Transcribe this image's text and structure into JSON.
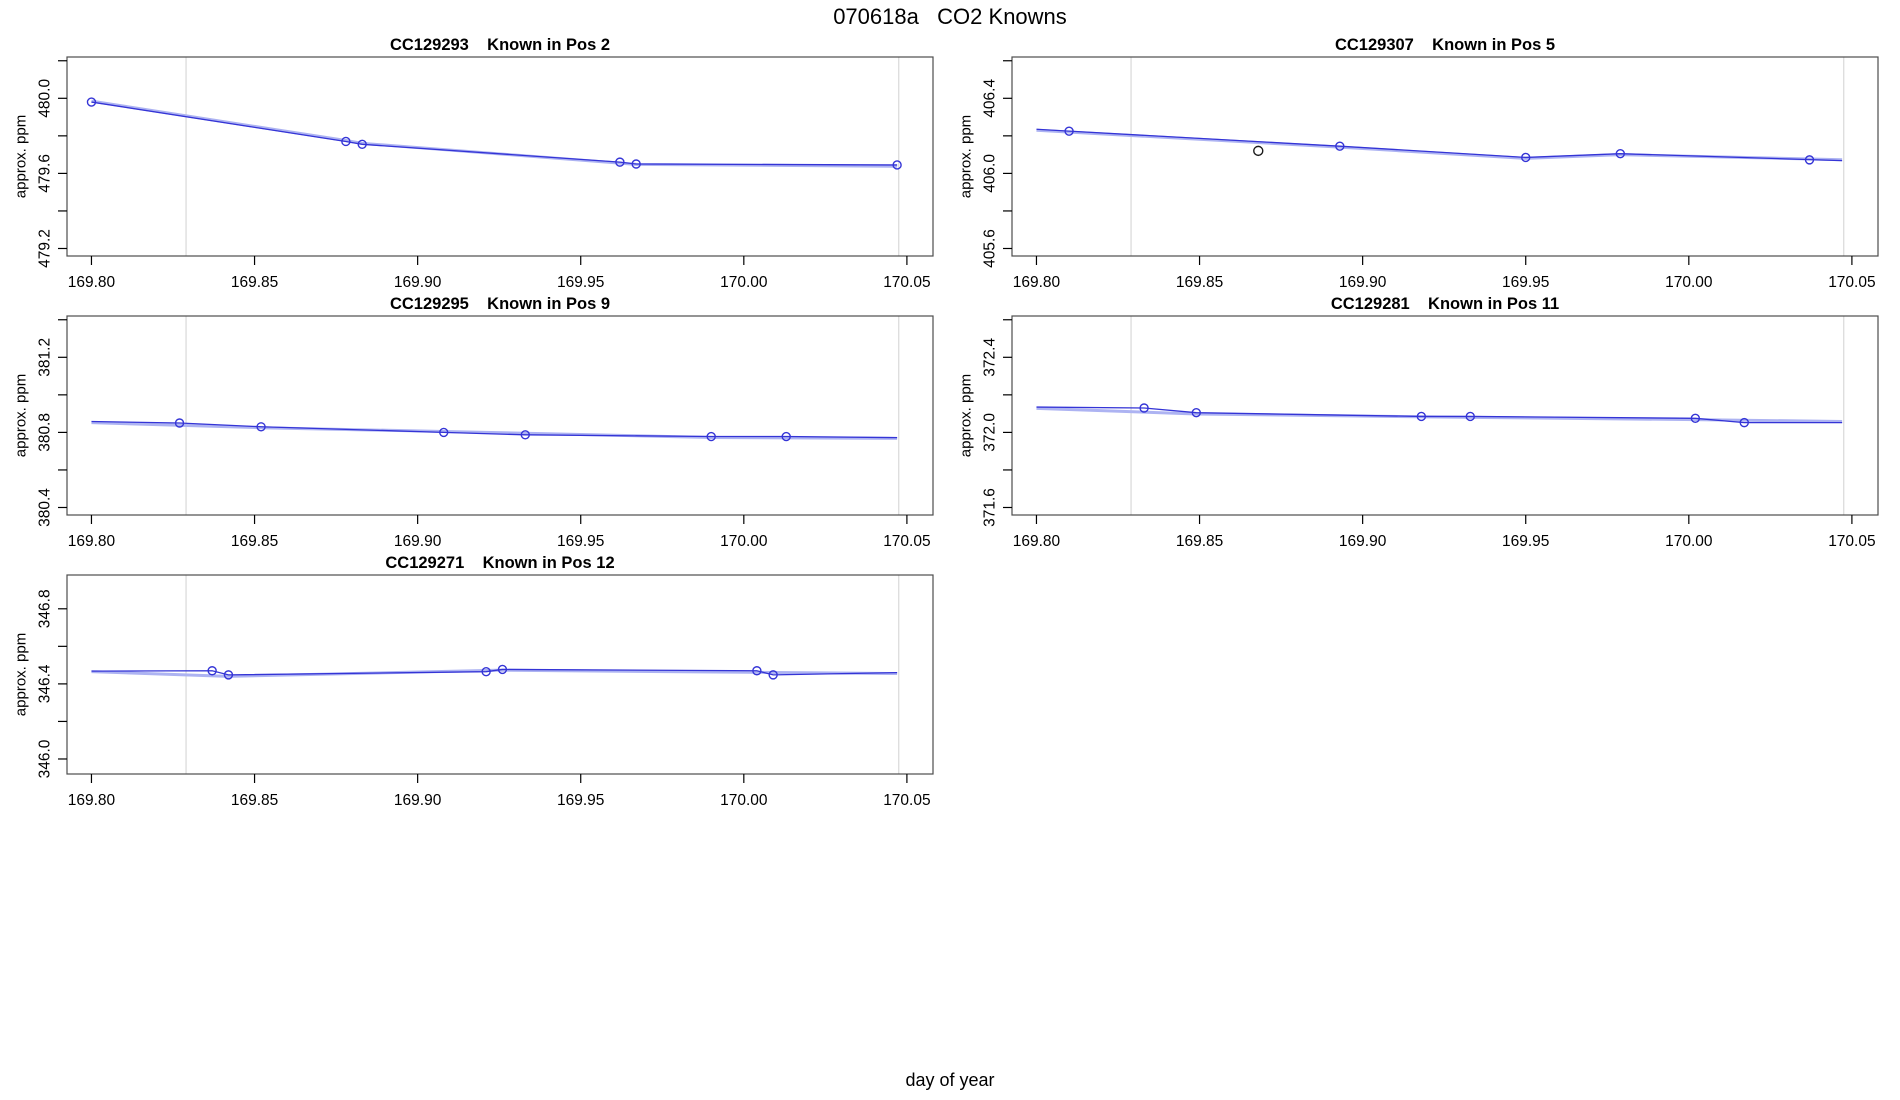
{
  "figure": {
    "title": "070618a   CO2 Knowns",
    "xlabel": "day of year",
    "background": "#ffffff"
  },
  "colors": {
    "line": "#3434d6",
    "light_line": "#adb3f2",
    "marker": "#3434d6",
    "dark_marker": "#1a1a1a",
    "gridline": "#d8d8d8",
    "frame": "#4d4d4d",
    "tick": "#000000",
    "text": "#000000"
  },
  "x_axis": {
    "lim": [
      169.7925,
      170.058
    ],
    "ticks": [
      169.8,
      169.85,
      169.9,
      169.95,
      170.0,
      170.05
    ],
    "labels": [
      "169.80",
      "169.85",
      "169.90",
      "169.95",
      "170.00",
      "170.05"
    ],
    "vlines": [
      169.829,
      170.0475
    ]
  },
  "chart_data": [
    {
      "type": "line",
      "title": "CC129293    Known in Pos 2",
      "ylabel": "approx. ppm",
      "xlabel": "day of year",
      "xlim": [
        169.7925,
        170.058
      ],
      "ylim": [
        479.16,
        480.22
      ],
      "yticks": [
        479.2,
        479.4,
        479.6,
        479.8,
        480.0,
        480.2
      ],
      "ytick_labels": [
        {
          "v": 479.2,
          "t": "479.2"
        },
        {
          "v": 479.6,
          "t": "479.6"
        },
        {
          "v": 480.0,
          "t": "480.0"
        }
      ],
      "series": {
        "light": [
          [
            169.8,
            479.985
          ],
          [
            169.878,
            479.775
          ],
          [
            169.883,
            479.76
          ],
          [
            169.962,
            479.655
          ],
          [
            169.967,
            479.648
          ],
          [
            170.047,
            479.638
          ]
        ],
        "main": [
          [
            169.8,
            479.98
          ],
          [
            169.878,
            479.77
          ],
          [
            169.883,
            479.755
          ],
          [
            169.962,
            479.66
          ],
          [
            169.967,
            479.65
          ],
          [
            170.047,
            479.645
          ]
        ],
        "points": [
          [
            169.8,
            479.98
          ],
          [
            169.878,
            479.77
          ],
          [
            169.883,
            479.755
          ],
          [
            169.962,
            479.66
          ],
          [
            169.967,
            479.65
          ],
          [
            170.047,
            479.645
          ]
        ],
        "dark_points": []
      }
    },
    {
      "type": "line",
      "title": "CC129307    Known in Pos 5",
      "ylabel": "approx. ppm",
      "xlabel": "day of year",
      "xlim": [
        169.7925,
        170.058
      ],
      "ylim": [
        405.56,
        406.62
      ],
      "yticks": [
        405.6,
        405.8,
        406.0,
        406.2,
        406.4,
        406.6
      ],
      "ytick_labels": [
        {
          "v": 405.6,
          "t": "405.6"
        },
        {
          "v": 406.0,
          "t": "406.0"
        },
        {
          "v": 406.4,
          "t": "406.4"
        }
      ],
      "series": {
        "light": [
          [
            169.8,
            406.23
          ],
          [
            169.893,
            406.14
          ],
          [
            169.95,
            406.08
          ],
          [
            169.979,
            406.1
          ],
          [
            170.047,
            406.073
          ]
        ],
        "main": [
          [
            169.8,
            406.235
          ],
          [
            169.81,
            406.225
          ],
          [
            169.893,
            406.145
          ],
          [
            169.95,
            406.085
          ],
          [
            169.979,
            406.105
          ],
          [
            170.047,
            406.068
          ]
        ],
        "points": [
          [
            169.81,
            406.225
          ],
          [
            169.893,
            406.145
          ],
          [
            169.95,
            406.085
          ],
          [
            169.979,
            406.105
          ],
          [
            170.037,
            406.072
          ]
        ],
        "dark_points": [
          [
            169.868,
            406.12
          ]
        ]
      }
    },
    {
      "type": "line",
      "title": "CC129295    Known in Pos 9",
      "ylabel": "approx. ppm",
      "xlabel": "day of year",
      "xlim": [
        169.7925,
        170.058
      ],
      "ylim": [
        380.36,
        381.42
      ],
      "yticks": [
        380.4,
        380.6,
        380.8,
        381.0,
        381.2,
        381.4
      ],
      "ytick_labels": [
        {
          "v": 380.4,
          "t": "380.4"
        },
        {
          "v": 380.8,
          "t": "380.8"
        },
        {
          "v": 381.2,
          "t": "381.2"
        }
      ],
      "series": {
        "light": [
          [
            169.8,
            380.852
          ],
          [
            169.852,
            380.825
          ],
          [
            169.908,
            380.805
          ],
          [
            169.99,
            380.773
          ],
          [
            170.047,
            380.768
          ]
        ],
        "main": [
          [
            169.8,
            380.858
          ],
          [
            169.827,
            380.85
          ],
          [
            169.852,
            380.83
          ],
          [
            169.908,
            380.8
          ],
          [
            169.933,
            380.787
          ],
          [
            169.99,
            380.778
          ],
          [
            170.013,
            380.778
          ],
          [
            170.047,
            380.772
          ]
        ],
        "points": [
          [
            169.827,
            380.85
          ],
          [
            169.852,
            380.83
          ],
          [
            169.908,
            380.8
          ],
          [
            169.933,
            380.787
          ],
          [
            169.99,
            380.778
          ],
          [
            170.013,
            380.778
          ]
        ],
        "dark_points": []
      }
    },
    {
      "type": "line",
      "title": "CC129281    Known in Pos 11",
      "ylabel": "approx. ppm",
      "xlabel": "day of year",
      "xlim": [
        169.7925,
        170.058
      ],
      "ylim": [
        371.56,
        372.62
      ],
      "yticks": [
        371.6,
        371.8,
        372.0,
        372.2,
        372.4,
        372.6
      ],
      "ytick_labels": [
        {
          "v": 371.6,
          "t": "371.6"
        },
        {
          "v": 372.0,
          "t": "372.0"
        },
        {
          "v": 372.4,
          "t": "372.4"
        }
      ],
      "series": {
        "light": [
          [
            169.8,
            372.128
          ],
          [
            169.849,
            372.098
          ],
          [
            169.933,
            372.08
          ],
          [
            170.002,
            372.068
          ],
          [
            170.047,
            372.058
          ]
        ],
        "main": [
          [
            169.8,
            372.135
          ],
          [
            169.833,
            372.13
          ],
          [
            169.849,
            372.105
          ],
          [
            169.918,
            372.085
          ],
          [
            169.933,
            372.085
          ],
          [
            170.002,
            372.075
          ],
          [
            170.017,
            372.052
          ],
          [
            170.047,
            372.052
          ]
        ],
        "points": [
          [
            169.833,
            372.13
          ],
          [
            169.849,
            372.105
          ],
          [
            169.918,
            372.085
          ],
          [
            169.933,
            372.085
          ],
          [
            170.002,
            372.075
          ],
          [
            170.017,
            372.052
          ]
        ],
        "dark_points": []
      }
    },
    {
      "type": "line",
      "title": "CC129271    Known in Pos 12",
      "ylabel": "approx. ppm",
      "xlabel": "day of year",
      "xlim": [
        169.7925,
        170.058
      ],
      "ylim": [
        345.92,
        346.98
      ],
      "yticks": [
        346.0,
        346.2,
        346.4,
        346.6,
        346.8
      ],
      "ytick_labels": [
        {
          "v": 346.0,
          "t": "346.0"
        },
        {
          "v": 346.4,
          "t": "346.4"
        },
        {
          "v": 346.8,
          "t": "346.8"
        }
      ],
      "series": {
        "light": [
          [
            169.8,
            346.465
          ],
          [
            169.842,
            346.44
          ],
          [
            169.926,
            346.473
          ],
          [
            170.047,
            346.455
          ]
        ],
        "main": [
          [
            169.8,
            346.468
          ],
          [
            169.837,
            346.47
          ],
          [
            169.842,
            346.448
          ],
          [
            169.921,
            346.465
          ],
          [
            169.926,
            346.477
          ],
          [
            170.004,
            346.47
          ],
          [
            170.009,
            346.448
          ],
          [
            170.047,
            346.46
          ]
        ],
        "points": [
          [
            169.837,
            346.47
          ],
          [
            169.842,
            346.448
          ],
          [
            169.921,
            346.465
          ],
          [
            169.926,
            346.477
          ],
          [
            170.004,
            346.47
          ],
          [
            170.009,
            346.448
          ]
        ],
        "dark_points": []
      }
    }
  ]
}
